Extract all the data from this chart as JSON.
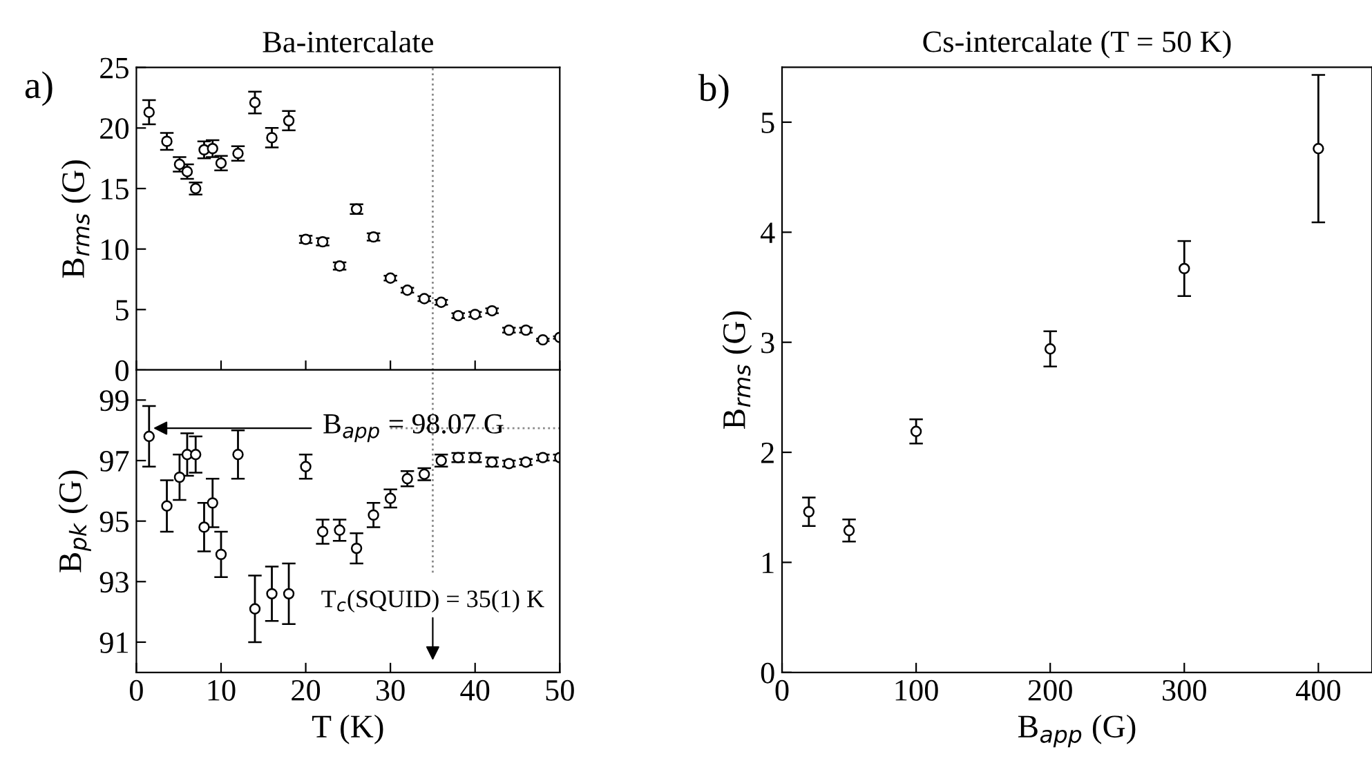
{
  "chart_data": [
    {
      "type": "scatter",
      "title": "Ba-intercalate",
      "ylabel": "B$_{rms}$ (G)",
      "marker": "circle",
      "tick_labels": "y",
      "xlim": [
        0,
        50
      ],
      "xticks": [
        0,
        10,
        20,
        30,
        40,
        50
      ],
      "ylim": [
        0,
        25
      ],
      "yticks": [
        0,
        5,
        10,
        15,
        20,
        25
      ],
      "annotations": [
        "a)"
      ],
      "ref_lines": [
        {
          "axis": "x",
          "value": 35,
          "label": null,
          "color": "#888888",
          "line_style": "dotted"
        }
      ],
      "series": [
        {
          "color": "#000000",
          "x": [
            1.5,
            3.6,
            5.1,
            6,
            7,
            8,
            9,
            10,
            12,
            14,
            16,
            18,
            20,
            22,
            24,
            26,
            28,
            30,
            32,
            34,
            36,
            38,
            40,
            42,
            44,
            46,
            48,
            50
          ],
          "values": [
            21.3,
            18.9,
            17.0,
            16.4,
            15.0,
            18.2,
            18.3,
            17.1,
            17.9,
            22.1,
            19.2,
            20.6,
            10.8,
            10.6,
            8.6,
            13.3,
            11.0,
            7.6,
            6.6,
            5.9,
            5.6,
            4.5,
            4.6,
            4.9,
            3.3,
            3.3,
            2.5,
            2.7
          ],
          "errors": [
            1.0,
            0.7,
            0.6,
            0.6,
            0.5,
            0.7,
            0.7,
            0.6,
            0.6,
            0.9,
            0.8,
            0.8,
            0.3,
            0.3,
            0.3,
            0.4,
            0.3,
            0.2,
            0.2,
            0.2,
            0.2,
            0.2,
            0.2,
            0.2,
            0.2,
            0.2,
            0.1,
            0.1
          ]
        }
      ]
    },
    {
      "type": "scatter",
      "xlabel": "T (K)",
      "ylabel": "B$_{pk}$ (G)",
      "marker": "circle",
      "xlim": [
        0,
        50
      ],
      "xticks": [
        0,
        10,
        20,
        30,
        40,
        50
      ],
      "ylim": [
        90,
        100
      ],
      "yticks": [
        91,
        93,
        95,
        97,
        99
      ],
      "annotations": [
        {
          "text": "B$_{app}$ = 98.07 G",
          "x": 2,
          "y": 98.07
        },
        "T$_{c}$(SQUID) = 35(1) K"
      ],
      "ref_lines": [
        {
          "axis": "x",
          "value": 35,
          "label": null,
          "color": "#888888",
          "line_style": "dotted"
        },
        {
          "axis": "y",
          "value": 98.07,
          "label": null,
          "color": "#888888",
          "line_style": "dotted"
        }
      ],
      "series": [
        {
          "color": "#000000",
          "x": [
            1.5,
            3.6,
            5.1,
            6,
            7,
            8,
            9,
            10,
            12,
            14,
            16,
            18,
            20,
            22,
            24,
            26,
            28,
            30,
            32,
            34,
            36,
            38,
            40,
            42,
            44,
            46,
            48,
            50
          ],
          "values": [
            97.8,
            95.5,
            96.45,
            97.2,
            97.2,
            94.8,
            95.6,
            93.9,
            97.2,
            92.1,
            92.6,
            92.6,
            96.8,
            94.65,
            94.7,
            94.1,
            95.2,
            95.75,
            96.4,
            96.55,
            97.0,
            97.1,
            97.1,
            96.95,
            96.9,
            96.95,
            97.1,
            97.1
          ],
          "errors": [
            1.0,
            0.85,
            0.75,
            0.7,
            0.6,
            0.8,
            0.8,
            0.75,
            0.8,
            1.1,
            0.9,
            1.0,
            0.4,
            0.4,
            0.35,
            0.5,
            0.4,
            0.3,
            0.25,
            0.2,
            0.2,
            0.15,
            0.15,
            0.15,
            0.1,
            0.1,
            0.1,
            0.1
          ]
        }
      ]
    },
    {
      "type": "scatter",
      "title": "Cs-intercalate (T = 50 K)",
      "xlabel": "B$_{app}$ (G)",
      "ylabel": "B$_{rms}$ (G)",
      "marker": "circle",
      "xlim": [
        0,
        440
      ],
      "xticks": [
        0,
        100,
        200,
        300,
        400
      ],
      "ylim": [
        0,
        5.5
      ],
      "yticks": [
        0,
        1,
        2,
        3,
        4,
        5
      ],
      "annotations": [
        "b)"
      ],
      "series": [
        {
          "color": "#000000",
          "x": [
            20,
            50,
            100,
            200,
            300,
            400
          ],
          "values": [
            1.46,
            1.29,
            2.19,
            2.94,
            3.67,
            4.76
          ],
          "errors": [
            0.13,
            0.1,
            0.11,
            0.16,
            0.25,
            0.67
          ]
        }
      ]
    }
  ]
}
